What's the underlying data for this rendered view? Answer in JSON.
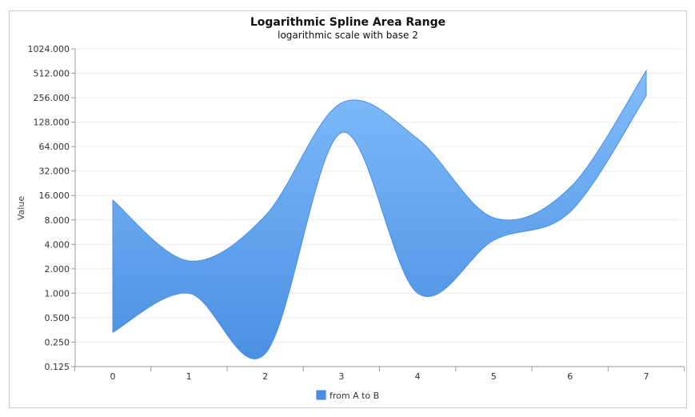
{
  "chart_data": {
    "type": "area",
    "title": "Logarithmic Spline Area Range",
    "subtitle": "logarithmic scale with base 2",
    "xlabel": "",
    "ylabel": "Value",
    "y_scale": "log2",
    "ylim": [
      0.125,
      1024
    ],
    "x_ticks": [
      "0",
      "1",
      "2",
      "3",
      "4",
      "5",
      "6",
      "7"
    ],
    "y_ticks": [
      "0.125",
      "0.250",
      "0.500",
      "1.000",
      "2.000",
      "4.000",
      "8.000",
      "16.000",
      "32.000",
      "64.000",
      "128.000",
      "256.000",
      "512.000",
      "1024.000"
    ],
    "legend_position": "bottom-center",
    "series": [
      {
        "name": "from A to B",
        "color": "#4a90e2",
        "x": [
          0,
          1,
          2,
          3,
          4,
          5,
          6,
          7
        ],
        "low": [
          0.33,
          1.0,
          0.18,
          95,
          1.0,
          4.5,
          10,
          270
        ],
        "high": [
          14,
          2.5,
          9,
          220,
          80,
          8.5,
          20,
          550
        ]
      }
    ]
  }
}
